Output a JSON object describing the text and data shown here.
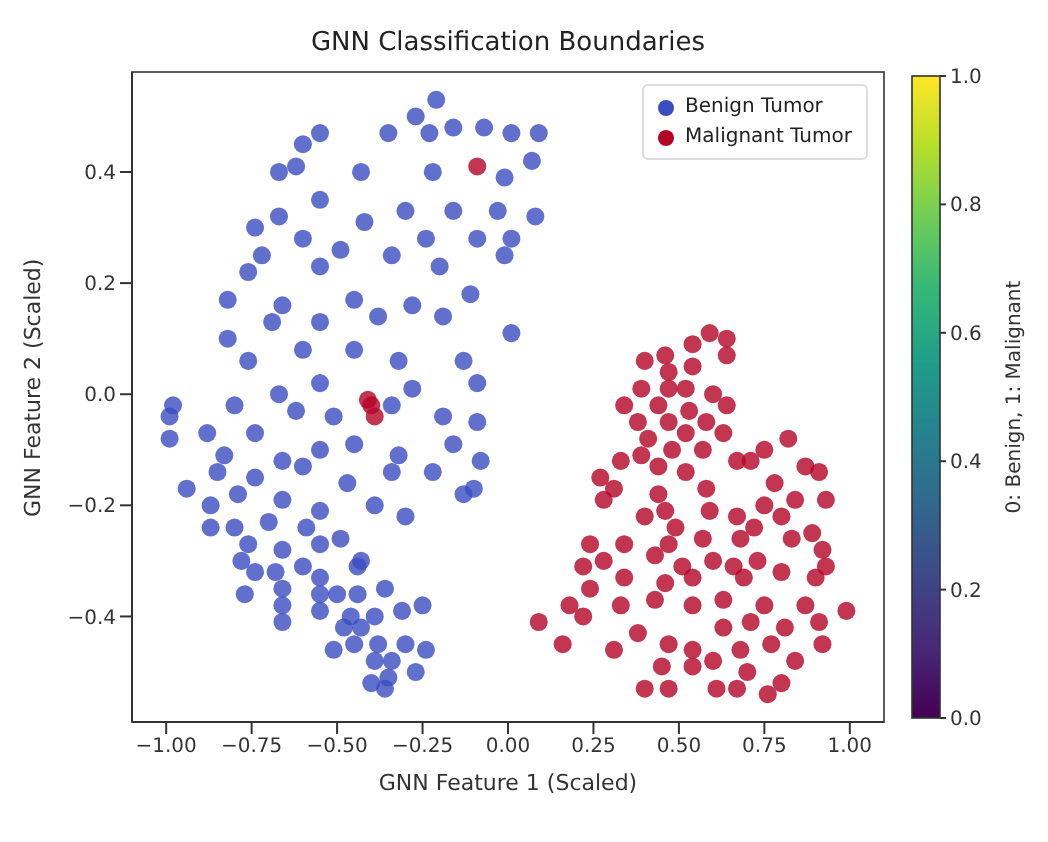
{
  "chart_data": {
    "type": "scatter",
    "title": "GNN Classification Boundaries",
    "xlabel": "GNN Feature 1 (Scaled)",
    "ylabel": "GNN Feature 2 (Scaled)",
    "clabel": "0: Benign, 1: Malignant",
    "clim": [
      0,
      1
    ],
    "cticks": [
      {
        "value": 0,
        "label": "0.0"
      },
      {
        "value": 0.2,
        "label": "0.2"
      },
      {
        "value": 0.4,
        "label": "0.4"
      },
      {
        "value": 0.6,
        "label": "0.6"
      },
      {
        "value": 0.8,
        "label": "0.8"
      },
      {
        "value": 1,
        "label": "1.0"
      }
    ],
    "xlim": [
      -1.1,
      1.1
    ],
    "ylim": [
      -0.59,
      0.58
    ],
    "xticks": [
      {
        "value": -1,
        "label": "−1.00"
      },
      {
        "value": -0.75,
        "label": "−0.75"
      },
      {
        "value": -0.5,
        "label": "−0.50"
      },
      {
        "value": -0.25,
        "label": "−0.25"
      },
      {
        "value": 0,
        "label": "0.00"
      },
      {
        "value": 0.25,
        "label": "0.25"
      },
      {
        "value": 0.5,
        "label": "0.50"
      },
      {
        "value": 0.75,
        "label": "0.75"
      },
      {
        "value": 1,
        "label": "1.00"
      }
    ],
    "yticks": [
      {
        "value": -0.4,
        "label": "−0.4"
      },
      {
        "value": -0.2,
        "label": "−0.2"
      },
      {
        "value": 0,
        "label": "0.0"
      },
      {
        "value": 0.2,
        "label": "0.2"
      },
      {
        "value": 0.4,
        "label": "0.4"
      }
    ],
    "grid": false,
    "legend": "top right",
    "marker": "circle",
    "series": [
      {
        "name": "Benign Tumor",
        "color": "#3b4cc0",
        "x": [
          -0.21,
          -0.27,
          -0.55,
          -0.6,
          -0.35,
          -0.23,
          -0.16,
          -0.07,
          0.01,
          0.09,
          -0.67,
          -0.62,
          -0.43,
          -0.22,
          -0.01,
          0.07,
          0.08,
          -0.74,
          -0.67,
          -0.55,
          -0.3,
          -0.16,
          -0.03,
          0.01,
          -0.6,
          -0.42,
          -0.24,
          -0.09,
          -0.72,
          -0.49,
          -0.34,
          -0.76,
          -0.55,
          -0.2,
          -0.01,
          -0.82,
          -0.66,
          -0.45,
          -0.28,
          -0.11,
          -0.82,
          -0.69,
          -0.55,
          -0.38,
          -0.19,
          0.01,
          -0.76,
          -0.6,
          -0.45,
          -0.32,
          -0.13,
          -0.09,
          -0.67,
          -0.55,
          -0.28,
          -0.99,
          -0.98,
          -0.99,
          -0.88,
          -0.8,
          -0.74,
          -0.62,
          -0.51,
          -0.34,
          -0.19,
          -0.09,
          -0.83,
          -0.66,
          -0.55,
          -0.45,
          -0.32,
          -0.16,
          -0.08,
          -0.94,
          -0.85,
          -0.74,
          -0.6,
          -0.47,
          -0.34,
          -0.22,
          -0.1,
          -0.87,
          -0.79,
          -0.66,
          -0.55,
          -0.39,
          -0.3,
          -0.13,
          -0.87,
          -0.8,
          -0.7,
          -0.59,
          -0.49,
          -0.76,
          -0.66,
          -0.55,
          -0.78,
          -0.6,
          -0.43,
          -0.74,
          -0.68,
          -0.55,
          -0.44,
          -0.77,
          -0.66,
          -0.55,
          -0.36,
          -0.66,
          -0.5,
          -0.44,
          -0.55,
          -0.46,
          -0.39,
          -0.31,
          -0.25,
          -0.66,
          -0.48,
          -0.43,
          -0.51,
          -0.45,
          -0.38,
          -0.3,
          -0.24,
          -0.39,
          -0.34,
          -0.27,
          -0.4,
          -0.35,
          -0.36
        ],
        "values": [
          0.53,
          0.5,
          0.47,
          0.45,
          0.47,
          0.47,
          0.48,
          0.48,
          0.47,
          0.47,
          0.4,
          0.41,
          0.4,
          0.4,
          0.39,
          0.42,
          0.32,
          0.3,
          0.32,
          0.35,
          0.33,
          0.33,
          0.33,
          0.28,
          0.28,
          0.31,
          0.28,
          0.28,
          0.25,
          0.26,
          0.25,
          0.22,
          0.23,
          0.23,
          0.25,
          0.17,
          0.16,
          0.17,
          0.16,
          0.18,
          0.1,
          0.13,
          0.13,
          0.14,
          0.14,
          0.11,
          0.06,
          0.08,
          0.08,
          0.06,
          0.06,
          0.02,
          0,
          0.02,
          0.01,
          -0.04,
          -0.02,
          -0.08,
          -0.07,
          -0.02,
          -0.07,
          -0.03,
          -0.04,
          -0.02,
          -0.04,
          -0.05,
          -0.11,
          -0.12,
          -0.1,
          -0.09,
          -0.11,
          -0.09,
          -0.12,
          -0.17,
          -0.14,
          -0.15,
          -0.13,
          -0.16,
          -0.14,
          -0.14,
          -0.17,
          -0.2,
          -0.18,
          -0.19,
          -0.21,
          -0.2,
          -0.22,
          -0.18,
          -0.24,
          -0.24,
          -0.23,
          -0.24,
          -0.26,
          -0.27,
          -0.28,
          -0.27,
          -0.3,
          -0.31,
          -0.3,
          -0.32,
          -0.32,
          -0.33,
          -0.31,
          -0.36,
          -0.35,
          -0.36,
          -0.35,
          -0.38,
          -0.36,
          -0.36,
          -0.39,
          -0.4,
          -0.4,
          -0.39,
          -0.38,
          -0.41,
          -0.42,
          -0.42,
          -0.46,
          -0.45,
          -0.45,
          -0.45,
          -0.46,
          -0.48,
          -0.48,
          -0.5,
          -0.52,
          -0.51,
          -0.53
        ]
      },
      {
        "name": "Malignant Tumor",
        "color": "#b40426",
        "x": [
          -0.09,
          -0.41,
          -0.4,
          -0.39,
          0.59,
          0.64,
          0.54,
          0.64,
          0.46,
          0.4,
          0.47,
          0.54,
          0.39,
          0.47,
          0.52,
          0.34,
          0.44,
          0.53,
          0.6,
          0.64,
          0.38,
          0.47,
          0.58,
          0.63,
          0.41,
          0.52,
          0.33,
          0.39,
          0.48,
          0.44,
          0.75,
          0.82,
          0.57,
          0.67,
          0.71,
          0.87,
          0.91,
          0.27,
          0.31,
          0.44,
          0.52,
          0.58,
          0.78,
          0.84,
          0.93,
          0.28,
          0.46,
          0.59,
          0.67,
          0.75,
          0.8,
          0.4,
          0.49,
          0.72,
          0.89,
          0.24,
          0.34,
          0.47,
          0.57,
          0.68,
          0.83,
          0.92,
          0.43,
          0.6,
          0.73,
          0.22,
          0.28,
          0.51,
          0.66,
          0.8,
          0.93,
          0.24,
          0.34,
          0.46,
          0.54,
          0.69,
          0.9,
          0.43,
          0.54,
          0.63,
          0.75,
          0.87,
          0.18,
          0.33,
          0.99,
          0.09,
          0.22,
          0.71,
          0.81,
          0.91,
          0.16,
          0.31,
          0.38,
          0.47,
          0.54,
          0.63,
          0.68,
          0.77,
          0.92,
          0.45,
          0.54,
          0.6,
          0.7,
          0.84,
          0.4,
          0.47,
          0.61,
          0.67,
          0.76,
          0.8
        ],
        "values": [
          0.41,
          -0.01,
          -0.02,
          -0.04,
          0.11,
          0.1,
          0.09,
          0.07,
          0.07,
          0.06,
          0.04,
          0.05,
          0.01,
          0.01,
          0.01,
          -0.02,
          -0.02,
          -0.03,
          0,
          -0.02,
          -0.05,
          -0.05,
          -0.05,
          -0.07,
          -0.08,
          -0.07,
          -0.12,
          -0.11,
          -0.1,
          -0.13,
          -0.1,
          -0.08,
          -0.1,
          -0.12,
          -0.12,
          -0.13,
          -0.14,
          -0.15,
          -0.17,
          -0.18,
          -0.14,
          -0.17,
          -0.16,
          -0.19,
          -0.19,
          -0.19,
          -0.21,
          -0.21,
          -0.22,
          -0.2,
          -0.22,
          -0.22,
          -0.24,
          -0.24,
          -0.25,
          -0.27,
          -0.27,
          -0.27,
          -0.26,
          -0.26,
          -0.26,
          -0.28,
          -0.29,
          -0.3,
          -0.3,
          -0.31,
          -0.3,
          -0.31,
          -0.31,
          -0.32,
          -0.31,
          -0.35,
          -0.33,
          -0.34,
          -0.33,
          -0.33,
          -0.33,
          -0.37,
          -0.38,
          -0.37,
          -0.38,
          -0.38,
          -0.38,
          -0.38,
          -0.39,
          -0.41,
          -0.4,
          -0.41,
          -0.42,
          -0.41,
          -0.45,
          -0.46,
          -0.43,
          -0.45,
          -0.46,
          -0.42,
          -0.46,
          -0.45,
          -0.45,
          -0.49,
          -0.49,
          -0.48,
          -0.5,
          -0.48,
          -0.53,
          -0.53,
          -0.53,
          -0.53,
          -0.54,
          -0.52
        ]
      }
    ]
  }
}
